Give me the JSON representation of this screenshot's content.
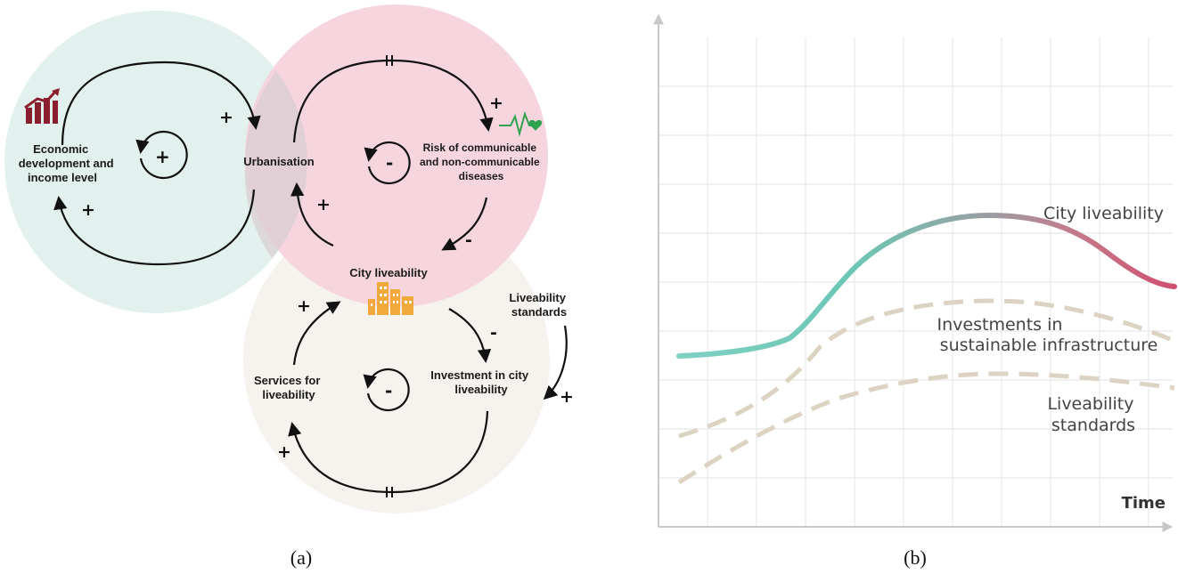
{
  "panel_a": {
    "caption": "(a)",
    "nodes": {
      "economic": [
        "Economic",
        "development and",
        "income level"
      ],
      "urbanisation": "Urbanisation",
      "risk": [
        "Risk of communicable",
        "and non-communicable",
        "diseases"
      ],
      "city": "City liveability",
      "standards": [
        "Liveability",
        "standards"
      ],
      "investment": [
        "Investment in city",
        "liveability"
      ],
      "services": [
        "Services for",
        "liveability"
      ]
    },
    "loops": {
      "reinforcing": "+",
      "balancing_top": "-",
      "balancing_bottom": "-"
    },
    "links": {
      "econ_to_urban": "+",
      "urban_to_econ": "+",
      "urban_to_risk": "+",
      "risk_to_city": "-",
      "city_to_urban": "+",
      "city_to_investment": "-",
      "standards_to_investment": "+",
      "investment_to_services": "+",
      "services_to_city": "+"
    },
    "colors": {
      "teal_circle": "#e3f1ee",
      "pink_circle": "#f5d2db",
      "beige_circle": "#f6f3ee",
      "econ_icon": "#8b1e2e",
      "health_icon": "#2fa24f",
      "city_icon": "#f2a93b"
    },
    "icons": [
      "growth-chart-icon",
      "heartbeat-icon",
      "buildings-icon"
    ]
  },
  "panel_b": {
    "caption": "(b)",
    "xlabel": "Time",
    "grid": true,
    "series": [
      {
        "name": "City liveability",
        "style": "solid-gradient",
        "colors": [
          "#7fd0c2",
          "#d0506e"
        ]
      },
      {
        "name": "Investments in\nsustainable infrastructure",
        "style": "dashed",
        "color": "#ddd3c3"
      },
      {
        "name": "Liveability\nstandards",
        "style": "dashed",
        "color": "#ddd3c3"
      }
    ]
  }
}
